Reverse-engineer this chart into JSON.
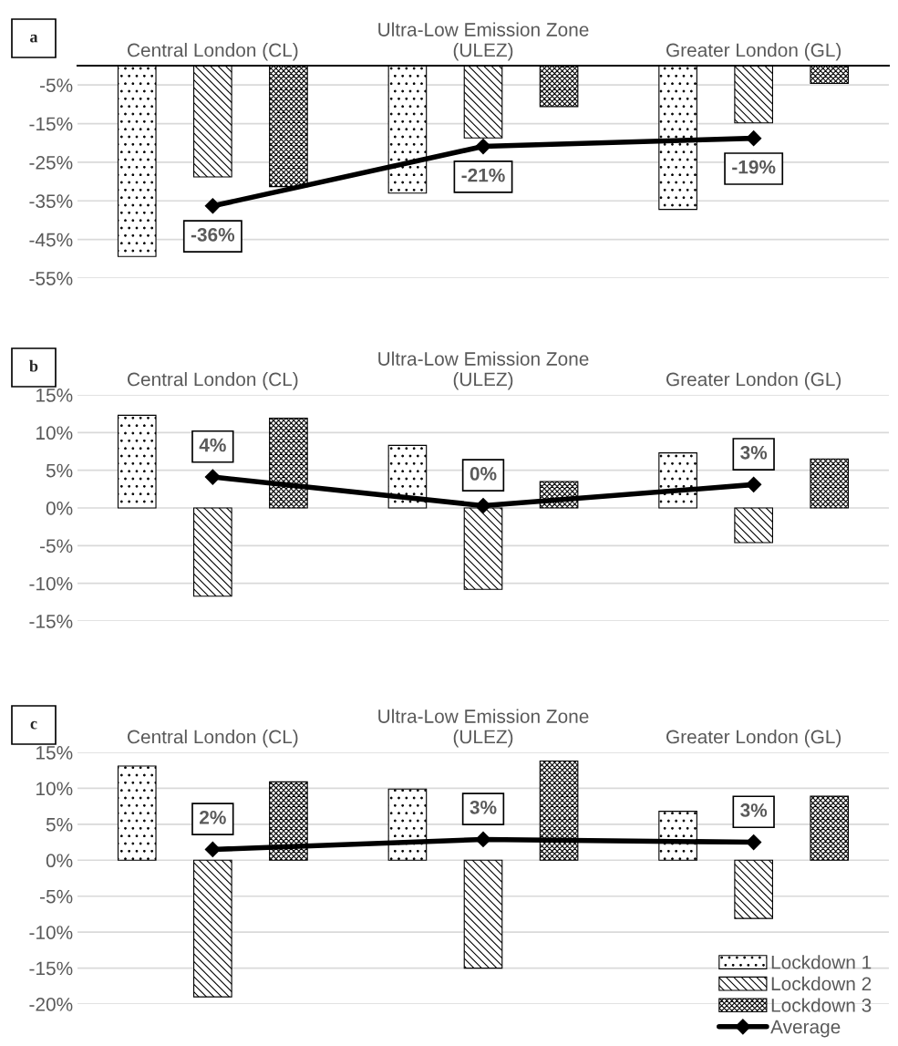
{
  "chart_data": [
    {
      "type": "bar",
      "annotations": [
        "a"
      ],
      "categories": [
        "Central London (CL)",
        "Ultra-Low Emission Zone\n(ULEZ)",
        "Greater London (GL)"
      ],
      "ylim": [
        -55,
        0
      ],
      "yticks": [
        {
          "value": -5,
          "label": "-5%"
        },
        {
          "value": -15,
          "label": "-15%"
        },
        {
          "value": -25,
          "label": "-25%"
        },
        {
          "value": -35,
          "label": "-35%"
        },
        {
          "value": -45,
          "label": "-45%"
        },
        {
          "value": -55,
          "label": "-55%"
        }
      ],
      "grid": "y",
      "legend": false,
      "series": [
        {
          "color": "#000000",
          "values": [
            -49.4,
            -33,
            -37.2
          ]
        },
        {
          "color": "#000000",
          "values": [
            -28.8,
            -18.7,
            -14.8
          ]
        },
        {
          "color": "#000000",
          "values": [
            -31.3,
            -10.6,
            -4.6
          ]
        },
        {
          "type": "line",
          "color": "#000000",
          "marker": "diamond",
          "values": [
            -36.3,
            -20.9,
            -18.8
          ],
          "value_labels": [
            "-36%",
            "-21%",
            "-19%"
          ]
        }
      ]
    },
    {
      "type": "bar",
      "annotations": [
        "b"
      ],
      "categories": [
        "Central London (CL)",
        "Ultra-Low Emission Zone\n(ULEZ)",
        "Greater London (GL)"
      ],
      "ylim": [
        -15,
        15
      ],
      "yticks": [
        {
          "value": -15,
          "label": "-15%"
        },
        {
          "value": -10,
          "label": "-10%"
        },
        {
          "value": -5,
          "label": "-5%"
        },
        {
          "value": 0,
          "label": "0%"
        },
        {
          "value": 5,
          "label": "5%"
        },
        {
          "value": 10,
          "label": "10%"
        },
        {
          "value": 15,
          "label": "15%"
        }
      ],
      "grid": "y",
      "legend": false,
      "series": [
        {
          "color": "#000000",
          "values": [
            12.3,
            8.3,
            7.3
          ]
        },
        {
          "color": "#000000",
          "values": [
            -11.7,
            -10.8,
            -4.6
          ]
        },
        {
          "color": "#000000",
          "values": [
            11.9,
            3.5,
            6.5
          ]
        },
        {
          "type": "line",
          "color": "#000000",
          "marker": "diamond",
          "values": [
            4.1,
            0.3,
            3.1
          ],
          "value_labels": [
            "4%",
            "0%",
            "3%"
          ]
        }
      ]
    },
    {
      "type": "bar",
      "annotations": [
        "c"
      ],
      "categories": [
        "Central London (CL)",
        "Ultra-Low Emission Zone\n(ULEZ)",
        "Greater London (GL)"
      ],
      "ylim": [
        -20,
        15
      ],
      "yticks": [
        {
          "value": -20,
          "label": "-20%"
        },
        {
          "value": -15,
          "label": "-15%"
        },
        {
          "value": -10,
          "label": "-10%"
        },
        {
          "value": -5,
          "label": "-5%"
        },
        {
          "value": 0,
          "label": "0%"
        },
        {
          "value": 5,
          "label": "5%"
        },
        {
          "value": 10,
          "label": "10%"
        },
        {
          "value": 15,
          "label": "15%"
        }
      ],
      "grid": "y",
      "legend": "bottom right",
      "series": [
        {
          "name": "Lockdown 1",
          "color": "#000000",
          "values": [
            13.1,
            9.9,
            6.8
          ]
        },
        {
          "name": "Lockdown 2",
          "color": "#000000",
          "values": [
            -19.0,
            -15.0,
            -8.1
          ]
        },
        {
          "name": "Lockdown 3",
          "color": "#000000",
          "values": [
            10.9,
            13.8,
            8.9
          ]
        },
        {
          "name": "Average",
          "type": "line",
          "color": "#000000",
          "marker": "diamond",
          "values": [
            1.5,
            2.9,
            2.5
          ],
          "value_labels": [
            "2%",
            "3%",
            "3%"
          ]
        }
      ]
    }
  ]
}
